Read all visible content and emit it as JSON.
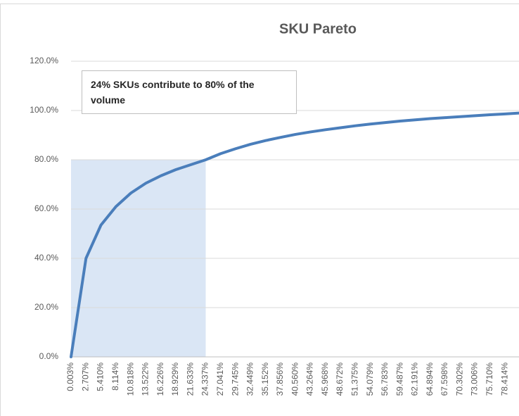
{
  "chart_data": {
    "type": "line",
    "title": "SKU Pareto",
    "categories": [
      "0.003%",
      "2.707%",
      "5.410%",
      "8.114%",
      "10.818%",
      "13.522%",
      "16.226%",
      "18.929%",
      "21.633%",
      "24.337%",
      "27.041%",
      "29.745%",
      "32.449%",
      "35.152%",
      "37.856%",
      "40.560%",
      "43.264%",
      "45.968%",
      "48.672%",
      "51.375%",
      "54.079%",
      "56.783%",
      "59.487%",
      "62.191%",
      "64.894%",
      "67.598%",
      "70.302%",
      "73.006%",
      "75.710%",
      "78.414%",
      null
    ],
    "series": [
      {
        "color": "#4a7ebb",
        "values": [
          0,
          40,
          53.5,
          61,
          66.5,
          70.5,
          73.5,
          76,
          78,
          80,
          82.5,
          84.5,
          86.3,
          87.8,
          89.1,
          90.3,
          91.3,
          92.2,
          93,
          93.8,
          94.5,
          95.1,
          95.7,
          96.2,
          96.7,
          97.1,
          97.5,
          97.9,
          98.3,
          98.6,
          99
        ]
      }
    ],
    "ylim": [
      0,
      120
    ],
    "yticks": [
      {
        "value": 0,
        "label": "0.0%"
      },
      {
        "value": 20,
        "label": "20.0%"
      },
      {
        "value": 40,
        "label": "40.0%"
      },
      {
        "value": 60,
        "label": "60.0%"
      },
      {
        "value": 80,
        "label": "80.0%"
      },
      {
        "value": 100,
        "label": "100.0%"
      },
      {
        "value": 120,
        "label": "120.0%"
      }
    ],
    "grid": true,
    "highlight": {
      "x_end": "24.337%",
      "y": 80,
      "color": "#dae6f5"
    },
    "annotation": "24% SKUs contribute to 80% of the volume"
  }
}
